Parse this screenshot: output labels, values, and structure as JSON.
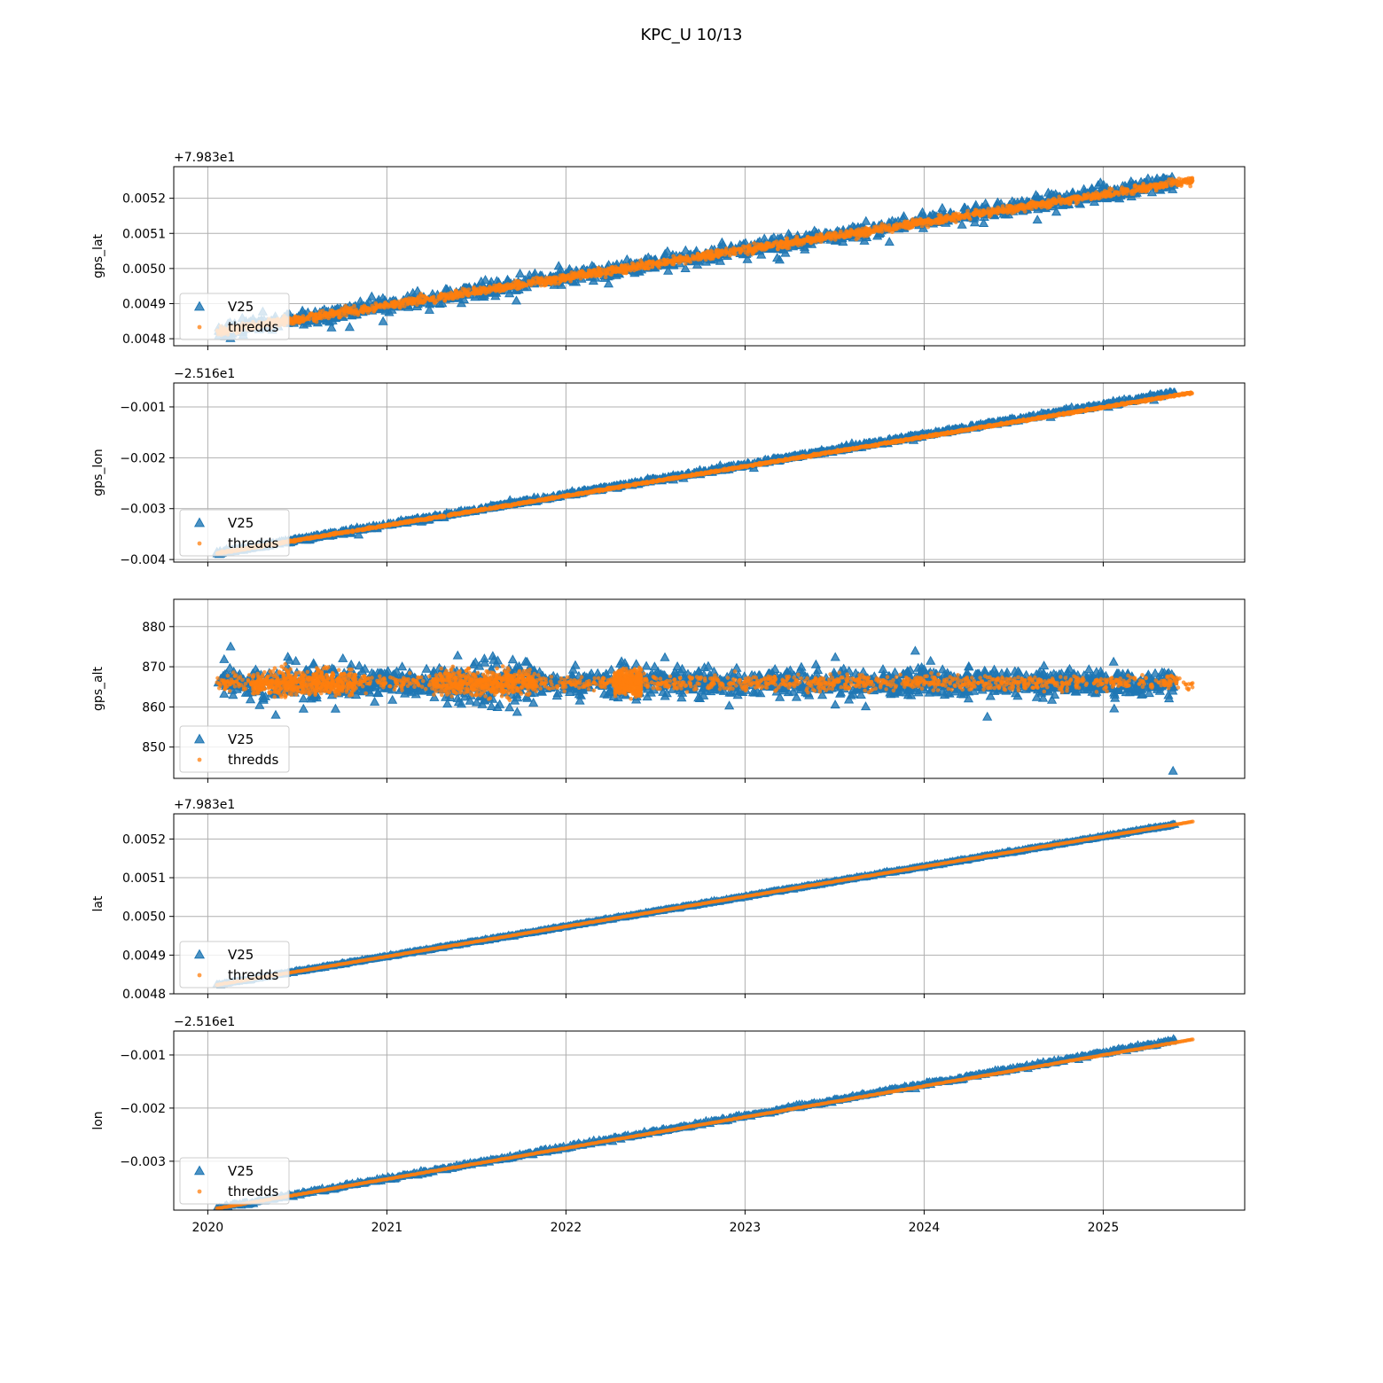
{
  "figure": {
    "title": "KPC_U 10/13"
  },
  "legend": {
    "entries": [
      "V25",
      "thredds"
    ],
    "placement": "lower-left"
  },
  "colors": {
    "v25": "#1f77b4",
    "thredds": "#ff7f0e",
    "grid": "#b0b0b0"
  },
  "chart_data": [
    {
      "type": "scatter",
      "ylabel": "gps_lat",
      "offset_text": "+7.983e1",
      "xlim": [
        2019.81,
        2025.79
      ],
      "ylim": [
        0.00478,
        0.00529
      ],
      "yticks": [
        0.0048,
        0.0049,
        0.005,
        0.0051,
        0.0052
      ],
      "ytick_labels": [
        "0.0048",
        "0.0049",
        "0.0050",
        "0.0051",
        "0.0052"
      ],
      "show_xticklabels": false,
      "series": [
        {
          "name": "V25",
          "marker": "triangle",
          "x_start": 2020.05,
          "x_end": 2025.4,
          "y_start": 0.00482,
          "y_end": 0.005245,
          "spread": 3.5e-05,
          "outlier_spread": 7e-05
        },
        {
          "name": "thredds",
          "marker": "dot",
          "x_start": 2020.05,
          "x_end": 2025.5,
          "y_start": 0.00482,
          "y_end": 0.00525,
          "spread": 2e-05
        }
      ]
    },
    {
      "type": "scatter",
      "ylabel": "gps_lon",
      "offset_text": "−2.516e1",
      "xlim": [
        2019.81,
        2025.79
      ],
      "ylim": [
        -0.00405,
        -0.00053
      ],
      "yticks": [
        -0.004,
        -0.003,
        -0.002,
        -0.001
      ],
      "ytick_labels": [
        "−0.004",
        "−0.003",
        "−0.002",
        "−0.001"
      ],
      "show_xticklabels": false,
      "series": [
        {
          "name": "V25",
          "marker": "triangle",
          "x_start": 2020.05,
          "x_end": 2025.4,
          "y_start": -0.00388,
          "y_end": -0.00073,
          "spread": 5e-05,
          "outlier_spread": 0.00012
        },
        {
          "name": "thredds",
          "marker": "dot",
          "x_start": 2020.05,
          "x_end": 2025.5,
          "y_start": -0.00388,
          "y_end": -0.00072,
          "spread": 3e-05
        }
      ]
    },
    {
      "type": "scatter",
      "ylabel": "gps_alt",
      "offset_text": "",
      "xlim": [
        2019.81,
        2025.79
      ],
      "ylim": [
        842.2,
        886.8
      ],
      "yticks": [
        850,
        860,
        870,
        880
      ],
      "ytick_labels": [
        "850",
        "860",
        "870",
        "880"
      ],
      "show_xticklabels": false,
      "series": [
        {
          "name": "V25",
          "marker": "triangle",
          "x_start": 2020.05,
          "x_end": 2025.4,
          "y_center": 866,
          "spread": 5.5,
          "outlier_spread": 11,
          "min_outlier": 844
        },
        {
          "name": "thredds",
          "marker": "dot",
          "x_start": 2020.05,
          "x_end": 2025.5,
          "y_center": 866,
          "spread": 4
        }
      ]
    },
    {
      "type": "scatter",
      "ylabel": "lat",
      "offset_text": "+7.983e1",
      "xlim": [
        2019.81,
        2025.79
      ],
      "ylim": [
        0.0048,
        0.005265
      ],
      "yticks": [
        0.0048,
        0.0049,
        0.005,
        0.0051,
        0.0052
      ],
      "ytick_labels": [
        "0.0048",
        "0.0049",
        "0.0050",
        "0.0051",
        "0.0052"
      ],
      "show_xticklabels": false,
      "series": [
        {
          "name": "V25",
          "marker": "triangle",
          "x_start": 2020.05,
          "x_end": 2025.4,
          "y_start": 0.004823,
          "y_end": 0.005237,
          "spread": 4e-06
        },
        {
          "name": "thredds",
          "marker": "dot",
          "x_start": 2020.05,
          "x_end": 2025.5,
          "y_start": 0.004823,
          "y_end": 0.005245,
          "spread": 1e-06
        }
      ]
    },
    {
      "type": "scatter",
      "ylabel": "lon",
      "offset_text": "−2.516e1",
      "xlim": [
        2019.81,
        2025.79
      ],
      "ylim": [
        -0.00392,
        -0.00055
      ],
      "yticks": [
        -0.003,
        -0.002,
        -0.001
      ],
      "ytick_labels": [
        "−0.003",
        "−0.002",
        "−0.001"
      ],
      "show_xticklabels": true,
      "xticks": [
        2020,
        2021,
        2022,
        2023,
        2024,
        2025
      ],
      "xtick_labels": [
        "2020",
        "2021",
        "2022",
        "2023",
        "2024",
        "2025"
      ],
      "series": [
        {
          "name": "V25",
          "marker": "triangle",
          "x_start": 2020.05,
          "x_end": 2025.4,
          "y_start": -0.00389,
          "y_end": -0.00073,
          "spread": 6e-05
        },
        {
          "name": "thredds",
          "marker": "dot",
          "x_start": 2020.05,
          "x_end": 2025.5,
          "y_start": -0.00389,
          "y_end": -0.00071,
          "spread": 1e-05
        }
      ]
    }
  ]
}
